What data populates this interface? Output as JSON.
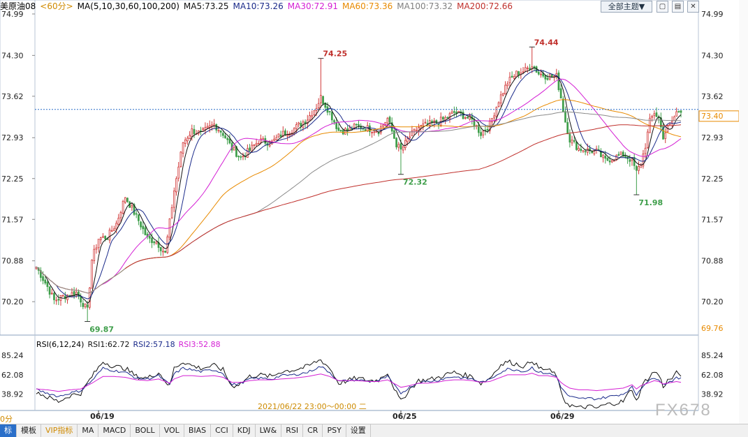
{
  "header": {
    "symbol": "美原油08",
    "period": "<60分>",
    "ma_def": "MA(5,10,30,60,100,200)",
    "ma5": "MA5:73.25",
    "ma10": "MA10:73.26",
    "ma30": "MA30:72.91",
    "ma60": "MA60:73.36",
    "ma100": "MA100:73.32",
    "ma200": "MA200:72.66",
    "theme_button": "全部主题▼"
  },
  "colors": {
    "up": "#d23a3a",
    "down": "#3e9e4a",
    "ma5": "#111111",
    "ma10": "#1a2a8a",
    "ma30": "#d41fd4",
    "ma60": "#e88a00",
    "ma100": "#8a8a8a",
    "ma200": "#c0302c",
    "rsi1": "#111111",
    "rsi2": "#1a2a8a",
    "rsi3": "#d41fd4"
  },
  "rsi": {
    "def": "RSI(6,12,24)",
    "rsi1": "RSI1:62.72",
    "rsi2": "RSI2:57.18",
    "rsi3": "RSI3:52.88",
    "ticks": [
      "85.24",
      "62.08",
      "38.92"
    ]
  },
  "chart_data": {
    "type": "candlestick",
    "y_ticks": [
      "74.99",
      "74.30",
      "73.62",
      "72.93",
      "72.25",
      "71.57",
      "70.88",
      "70.20"
    ],
    "ylim": [
      69.76,
      74.99
    ],
    "current_price": "73.40",
    "bottom_value": "69.76",
    "annotations": [
      {
        "label": "69.87",
        "value": 69.87,
        "bar": 23,
        "kind": "low"
      },
      {
        "label": "74.25",
        "value": 74.25,
        "bar": 128,
        "kind": "high"
      },
      {
        "label": "72.32",
        "value": 72.32,
        "bar": 164,
        "kind": "low"
      },
      {
        "label": "74.44",
        "value": 74.44,
        "bar": 223,
        "kind": "high"
      },
      {
        "label": "71.98",
        "value": 71.98,
        "bar": 270,
        "kind": "low"
      }
    ],
    "x_labels": [
      {
        "label": "06/19",
        "bar": 28
      },
      {
        "label": "06/25",
        "bar": 164
      },
      {
        "label": "06/29",
        "bar": 235
      }
    ],
    "ma200_start_bar": 40,
    "price_anchors": [
      [
        0,
        70.78
      ],
      [
        5,
        70.45
      ],
      [
        8,
        70.22
      ],
      [
        13,
        70.3
      ],
      [
        18,
        70.35
      ],
      [
        23,
        70.05
      ],
      [
        25,
        70.9
      ],
      [
        28,
        71.25
      ],
      [
        32,
        71.28
      ],
      [
        36,
        71.5
      ],
      [
        40,
        71.95
      ],
      [
        46,
        71.55
      ],
      [
        50,
        71.25
      ],
      [
        54,
        71.2
      ],
      [
        58,
        71.0
      ],
      [
        62,
        72.05
      ],
      [
        66,
        72.85
      ],
      [
        70,
        73.05
      ],
      [
        74,
        73.0
      ],
      [
        80,
        73.15
      ],
      [
        84,
        73.0
      ],
      [
        88,
        72.75
      ],
      [
        92,
        72.6
      ],
      [
        96,
        72.72
      ],
      [
        100,
        72.88
      ],
      [
        106,
        72.85
      ],
      [
        110,
        72.98
      ],
      [
        116,
        73.08
      ],
      [
        122,
        73.25
      ],
      [
        126,
        73.45
      ],
      [
        128,
        73.6
      ],
      [
        132,
        73.35
      ],
      [
        136,
        73.05
      ],
      [
        140,
        73.05
      ],
      [
        144,
        73.12
      ],
      [
        150,
        73.08
      ],
      [
        154,
        73.05
      ],
      [
        158,
        73.25
      ],
      [
        162,
        72.82
      ],
      [
        164,
        72.72
      ],
      [
        168,
        72.95
      ],
      [
        172,
        73.1
      ],
      [
        176,
        73.15
      ],
      [
        180,
        73.18
      ],
      [
        184,
        73.25
      ],
      [
        188,
        73.35
      ],
      [
        192,
        73.3
      ],
      [
        196,
        73.22
      ],
      [
        200,
        73.0
      ],
      [
        204,
        73.15
      ],
      [
        208,
        73.55
      ],
      [
        212,
        73.85
      ],
      [
        216,
        74.0
      ],
      [
        220,
        74.05
      ],
      [
        223,
        74.15
      ],
      [
        226,
        74.0
      ],
      [
        230,
        73.95
      ],
      [
        234,
        73.95
      ],
      [
        236,
        73.6
      ],
      [
        238,
        73.2
      ],
      [
        240,
        72.9
      ],
      [
        244,
        72.75
      ],
      [
        248,
        72.72
      ],
      [
        252,
        72.7
      ],
      [
        256,
        72.55
      ],
      [
        260,
        72.6
      ],
      [
        264,
        72.65
      ],
      [
        266,
        72.6
      ],
      [
        268,
        72.55
      ],
      [
        270,
        72.35
      ],
      [
        272,
        72.5
      ],
      [
        274,
        72.8
      ],
      [
        276,
        73.2
      ],
      [
        278,
        73.35
      ],
      [
        280,
        73.25
      ],
      [
        282,
        72.95
      ],
      [
        284,
        73.1
      ],
      [
        286,
        73.2
      ],
      [
        288,
        73.35
      ],
      [
        290,
        73.4
      ]
    ],
    "rsi1_anchors": [
      [
        0,
        42
      ],
      [
        5,
        35
      ],
      [
        10,
        30
      ],
      [
        15,
        37
      ],
      [
        20,
        40
      ],
      [
        25,
        60
      ],
      [
        30,
        78
      ],
      [
        35,
        72
      ],
      [
        40,
        70
      ],
      [
        45,
        60
      ],
      [
        50,
        58
      ],
      [
        55,
        65
      ],
      [
        60,
        48
      ],
      [
        62,
        70
      ],
      [
        66,
        78
      ],
      [
        70,
        73
      ],
      [
        74,
        70
      ],
      [
        80,
        73
      ],
      [
        84,
        68
      ],
      [
        88,
        48
      ],
      [
        92,
        52
      ],
      [
        96,
        60
      ],
      [
        100,
        62
      ],
      [
        106,
        60
      ],
      [
        110,
        66
      ],
      [
        116,
        68
      ],
      [
        122,
        72
      ],
      [
        126,
        78
      ],
      [
        128,
        80
      ],
      [
        132,
        70
      ],
      [
        136,
        52
      ],
      [
        140,
        55
      ],
      [
        144,
        58
      ],
      [
        150,
        55
      ],
      [
        154,
        56
      ],
      [
        158,
        65
      ],
      [
        162,
        40
      ],
      [
        164,
        30
      ],
      [
        168,
        45
      ],
      [
        172,
        55
      ],
      [
        176,
        56
      ],
      [
        180,
        58
      ],
      [
        184,
        62
      ],
      [
        188,
        65
      ],
      [
        192,
        62
      ],
      [
        196,
        60
      ],
      [
        200,
        52
      ],
      [
        204,
        58
      ],
      [
        208,
        72
      ],
      [
        212,
        78
      ],
      [
        216,
        75
      ],
      [
        220,
        72
      ],
      [
        223,
        80
      ],
      [
        226,
        70
      ],
      [
        230,
        68
      ],
      [
        234,
        62
      ],
      [
        236,
        40
      ],
      [
        238,
        30
      ],
      [
        240,
        26
      ],
      [
        244,
        22
      ],
      [
        248,
        24
      ],
      [
        252,
        22
      ],
      [
        256,
        26
      ],
      [
        260,
        28
      ],
      [
        264,
        30
      ],
      [
        266,
        38
      ],
      [
        268,
        45
      ],
      [
        270,
        30
      ],
      [
        272,
        45
      ],
      [
        274,
        55
      ],
      [
        276,
        60
      ],
      [
        278,
        66
      ],
      [
        280,
        62
      ],
      [
        282,
        48
      ],
      [
        284,
        55
      ],
      [
        286,
        58
      ],
      [
        288,
        64
      ],
      [
        290,
        62.72
      ]
    ],
    "rsi2_anchors": [
      [
        0,
        44
      ],
      [
        5,
        40
      ],
      [
        10,
        36
      ],
      [
        15,
        40
      ],
      [
        20,
        43
      ],
      [
        25,
        55
      ],
      [
        30,
        70
      ],
      [
        35,
        67
      ],
      [
        40,
        65
      ],
      [
        45,
        58
      ],
      [
        50,
        57
      ],
      [
        55,
        61
      ],
      [
        60,
        50
      ],
      [
        62,
        63
      ],
      [
        66,
        70
      ],
      [
        70,
        68
      ],
      [
        74,
        66
      ],
      [
        80,
        68
      ],
      [
        84,
        64
      ],
      [
        88,
        50
      ],
      [
        92,
        52
      ],
      [
        96,
        57
      ],
      [
        100,
        58
      ],
      [
        106,
        57
      ],
      [
        110,
        61
      ],
      [
        116,
        62
      ],
      [
        122,
        65
      ],
      [
        126,
        70
      ],
      [
        128,
        72
      ],
      [
        132,
        65
      ],
      [
        136,
        54
      ],
      [
        140,
        55
      ],
      [
        144,
        56
      ],
      [
        150,
        54
      ],
      [
        154,
        55
      ],
      [
        158,
        60
      ],
      [
        162,
        46
      ],
      [
        164,
        40
      ],
      [
        168,
        47
      ],
      [
        172,
        53
      ],
      [
        176,
        54
      ],
      [
        180,
        55
      ],
      [
        184,
        58
      ],
      [
        188,
        60
      ],
      [
        192,
        58
      ],
      [
        196,
        57
      ],
      [
        200,
        53
      ],
      [
        204,
        56
      ],
      [
        208,
        64
      ],
      [
        212,
        69
      ],
      [
        216,
        68
      ],
      [
        220,
        66
      ],
      [
        223,
        71
      ],
      [
        226,
        65
      ],
      [
        230,
        64
      ],
      [
        234,
        60
      ],
      [
        236,
        48
      ],
      [
        238,
        40
      ],
      [
        240,
        36
      ],
      [
        244,
        33
      ],
      [
        248,
        34
      ],
      [
        252,
        33
      ],
      [
        256,
        35
      ],
      [
        260,
        37
      ],
      [
        264,
        39
      ],
      [
        266,
        43
      ],
      [
        268,
        47
      ],
      [
        270,
        38
      ],
      [
        272,
        46
      ],
      [
        274,
        52
      ],
      [
        276,
        55
      ],
      [
        278,
        59
      ],
      [
        280,
        57
      ],
      [
        282,
        50
      ],
      [
        284,
        53
      ],
      [
        286,
        55
      ],
      [
        288,
        58
      ],
      [
        290,
        57.18
      ]
    ],
    "rsi3_anchors": [
      [
        0,
        45
      ],
      [
        5,
        44
      ],
      [
        10,
        42
      ],
      [
        15,
        44
      ],
      [
        20,
        45
      ],
      [
        25,
        52
      ],
      [
        30,
        60
      ],
      [
        35,
        60
      ],
      [
        40,
        59
      ],
      [
        45,
        56
      ],
      [
        50,
        55
      ],
      [
        55,
        57
      ],
      [
        60,
        52
      ],
      [
        62,
        57
      ],
      [
        66,
        61
      ],
      [
        70,
        61
      ],
      [
        74,
        60
      ],
      [
        80,
        61
      ],
      [
        84,
        59
      ],
      [
        88,
        53
      ],
      [
        92,
        53
      ],
      [
        96,
        55
      ],
      [
        100,
        56
      ],
      [
        106,
        56
      ],
      [
        110,
        57
      ],
      [
        116,
        58
      ],
      [
        122,
        60
      ],
      [
        126,
        62
      ],
      [
        128,
        63
      ],
      [
        132,
        60
      ],
      [
        136,
        55
      ],
      [
        140,
        55
      ],
      [
        144,
        55
      ],
      [
        150,
        54
      ],
      [
        154,
        54
      ],
      [
        158,
        56
      ],
      [
        162,
        50
      ],
      [
        164,
        47
      ],
      [
        168,
        49
      ],
      [
        172,
        52
      ],
      [
        176,
        52
      ],
      [
        180,
        53
      ],
      [
        184,
        55
      ],
      [
        188,
        56
      ],
      [
        192,
        56
      ],
      [
        196,
        55
      ],
      [
        200,
        53
      ],
      [
        204,
        54
      ],
      [
        208,
        58
      ],
      [
        212,
        62
      ],
      [
        216,
        62
      ],
      [
        220,
        62
      ],
      [
        223,
        64
      ],
      [
        226,
        61
      ],
      [
        230,
        61
      ],
      [
        234,
        59
      ],
      [
        236,
        53
      ],
      [
        238,
        49
      ],
      [
        240,
        46
      ],
      [
        244,
        44
      ],
      [
        248,
        44
      ],
      [
        252,
        43
      ],
      [
        256,
        44
      ],
      [
        260,
        45
      ],
      [
        264,
        46
      ],
      [
        266,
        48
      ],
      [
        268,
        50
      ],
      [
        270,
        45
      ],
      [
        272,
        49
      ],
      [
        274,
        51
      ],
      [
        276,
        53
      ],
      [
        278,
        55
      ],
      [
        280,
        54
      ],
      [
        282,
        51
      ],
      [
        284,
        52
      ],
      [
        286,
        53
      ],
      [
        288,
        54
      ],
      [
        290,
        52.88
      ]
    ]
  },
  "crosshair_label": "2021/06/22 23:00～00:00 二",
  "bottom_bar": [
    "0分",
    "标",
    "模板",
    "VIP指标",
    "MA",
    "MACD",
    "BOLL",
    "VOL",
    "BIAS",
    "CCI",
    "KDJ",
    "LW&",
    "RSI",
    "CR",
    "PSY",
    "设置"
  ],
  "watermark": "FX678"
}
